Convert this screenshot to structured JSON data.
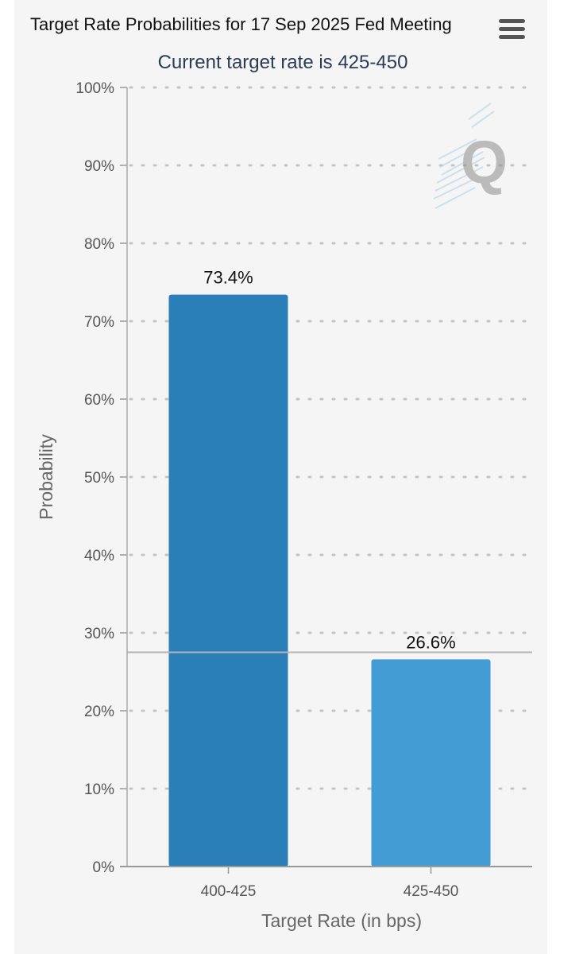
{
  "header": {
    "title": "Target Rate Probabilities for 17 Sep 2025 Fed Meeting",
    "subtitle": "Current target rate is 425-450",
    "menu_icon": "hamburger-menu-icon"
  },
  "watermark": {
    "icon": "q-logo-watermark"
  },
  "colors": {
    "bar_primary": "#2a7fb8",
    "bar_secondary": "#449cd5",
    "reference_line": "#b5b5b5"
  },
  "chart_data": {
    "type": "bar",
    "title": "Target Rate Probabilities for 17 Sep 2025 Fed Meeting",
    "subtitle": "Current target rate is 425-450",
    "xlabel": "Target Rate (in bps)",
    "ylabel": "Probability",
    "categories": [
      "400-425",
      "425-450"
    ],
    "values": [
      73.4,
      26.6
    ],
    "data_labels": [
      "73.4%",
      "26.6%"
    ],
    "ylim": [
      0,
      100
    ],
    "yticks": [
      0,
      10,
      20,
      30,
      40,
      50,
      60,
      70,
      80,
      90,
      100
    ],
    "ytick_labels": [
      "0%",
      "10%",
      "20%",
      "30%",
      "40%",
      "50%",
      "60%",
      "70%",
      "80%",
      "90%",
      "100%"
    ],
    "grid": true,
    "reference_line": 27.5,
    "legend": "none"
  }
}
